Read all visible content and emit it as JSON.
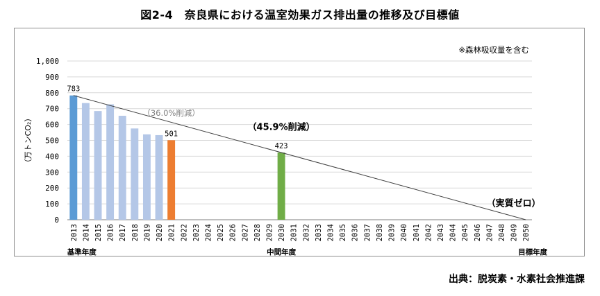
{
  "page": {
    "title": "図2-4　奈良県における温室効果ガス排出量の推移及び目標値",
    "source": "出典：脱炭素・水素社会推進課"
  },
  "chart_data": {
    "type": "bar",
    "title": "図2-4　奈良県における温室効果ガス排出量の推移及び目標値",
    "note": "※森林吸収量を含む",
    "ylabel": "（万トンCO₂）",
    "xlabel": "",
    "ylim": [
      0,
      1000
    ],
    "yticks": [
      "0",
      "100",
      "200",
      "300",
      "400",
      "500",
      "600",
      "700",
      "800",
      "900",
      "1,000"
    ],
    "ytick_values": [
      0,
      100,
      200,
      300,
      400,
      500,
      600,
      700,
      800,
      900,
      1000
    ],
    "grid": true,
    "categories": [
      "2013",
      "2014",
      "2015",
      "2016",
      "2017",
      "2018",
      "2019",
      "2020",
      "2021",
      "2022",
      "2023",
      "2024",
      "2025",
      "2026",
      "2027",
      "2028",
      "2029",
      "2030",
      "2031",
      "2032",
      "2033",
      "2034",
      "2035",
      "2036",
      "2037",
      "2038",
      "2039",
      "2040",
      "2041",
      "2042",
      "2043",
      "2044",
      "2045",
      "2046",
      "2047",
      "2048",
      "2049",
      "2050"
    ],
    "bars": [
      {
        "x": "2013",
        "value": 783,
        "color": "#5b9bd5",
        "label": "783"
      },
      {
        "x": "2014",
        "value": 735,
        "color": "#b4c7e7"
      },
      {
        "x": "2015",
        "value": 685,
        "color": "#b4c7e7"
      },
      {
        "x": "2016",
        "value": 727,
        "color": "#b4c7e7"
      },
      {
        "x": "2017",
        "value": 655,
        "color": "#b4c7e7"
      },
      {
        "x": "2018",
        "value": 575,
        "color": "#b4c7e7"
      },
      {
        "x": "2019",
        "value": 538,
        "color": "#b4c7e7"
      },
      {
        "x": "2020",
        "value": 533,
        "color": "#b4c7e7"
      },
      {
        "x": "2021",
        "value": 501,
        "color": "#ed7d31",
        "label": "501"
      },
      {
        "x": "2030",
        "value": 423,
        "color": "#70ad47",
        "label": "423"
      }
    ],
    "trend_line": {
      "from": {
        "x": "2013",
        "y": 783
      },
      "to": {
        "x": "2050",
        "y": 0
      },
      "color": "#404040"
    },
    "annotations": [
      {
        "text": "（36.0%削減）",
        "x": "2021",
        "y": 655,
        "color": "#808080",
        "bold": false
      },
      {
        "text": "（45.9%削減）",
        "x": "2030",
        "y": 565,
        "color": "#000000",
        "bold": true
      },
      {
        "text": "（実質ゼロ）",
        "x": "2049",
        "y": 85,
        "color": "#000000",
        "bold": true
      }
    ],
    "period_labels": [
      {
        "text": "基準年度",
        "x": "2013"
      },
      {
        "text": "中間年度",
        "x": "2030"
      },
      {
        "text": "目標年度",
        "x": "2050"
      }
    ]
  }
}
